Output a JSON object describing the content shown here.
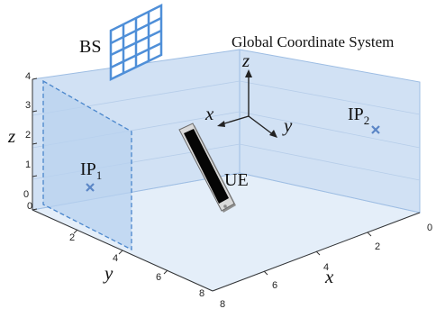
{
  "labels": {
    "bs": "BS",
    "ue": "UE",
    "gcs_title": "Global Coordinate System",
    "ip1_main": "IP",
    "ip1_sub": "1",
    "ip2_main": "IP",
    "ip2_sub": "2"
  },
  "axes": {
    "gcs_z": "z",
    "gcs_x": "x",
    "gcs_y": "y",
    "plot_z": "z",
    "plot_y": "y",
    "plot_x": "x"
  },
  "ticks": {
    "z": [
      "0",
      "1",
      "2",
      "3",
      "4"
    ],
    "y": [
      "0",
      "2",
      "4",
      "6",
      "8"
    ],
    "x": [
      "0",
      "2",
      "4",
      "6",
      "8"
    ]
  },
  "colors": {
    "wall_fill": "#c9dcf2",
    "floor_fill": "#e4eef9",
    "edge": "#7fa6d6",
    "panel_edge": "#4a86cc",
    "bs_grid": "#4f8fd8",
    "marker": "#5b86c6"
  },
  "icons": {
    "bs": "antenna-array-icon",
    "ue": "smartphone-icon",
    "ip_marker": "cross-marker-icon"
  }
}
